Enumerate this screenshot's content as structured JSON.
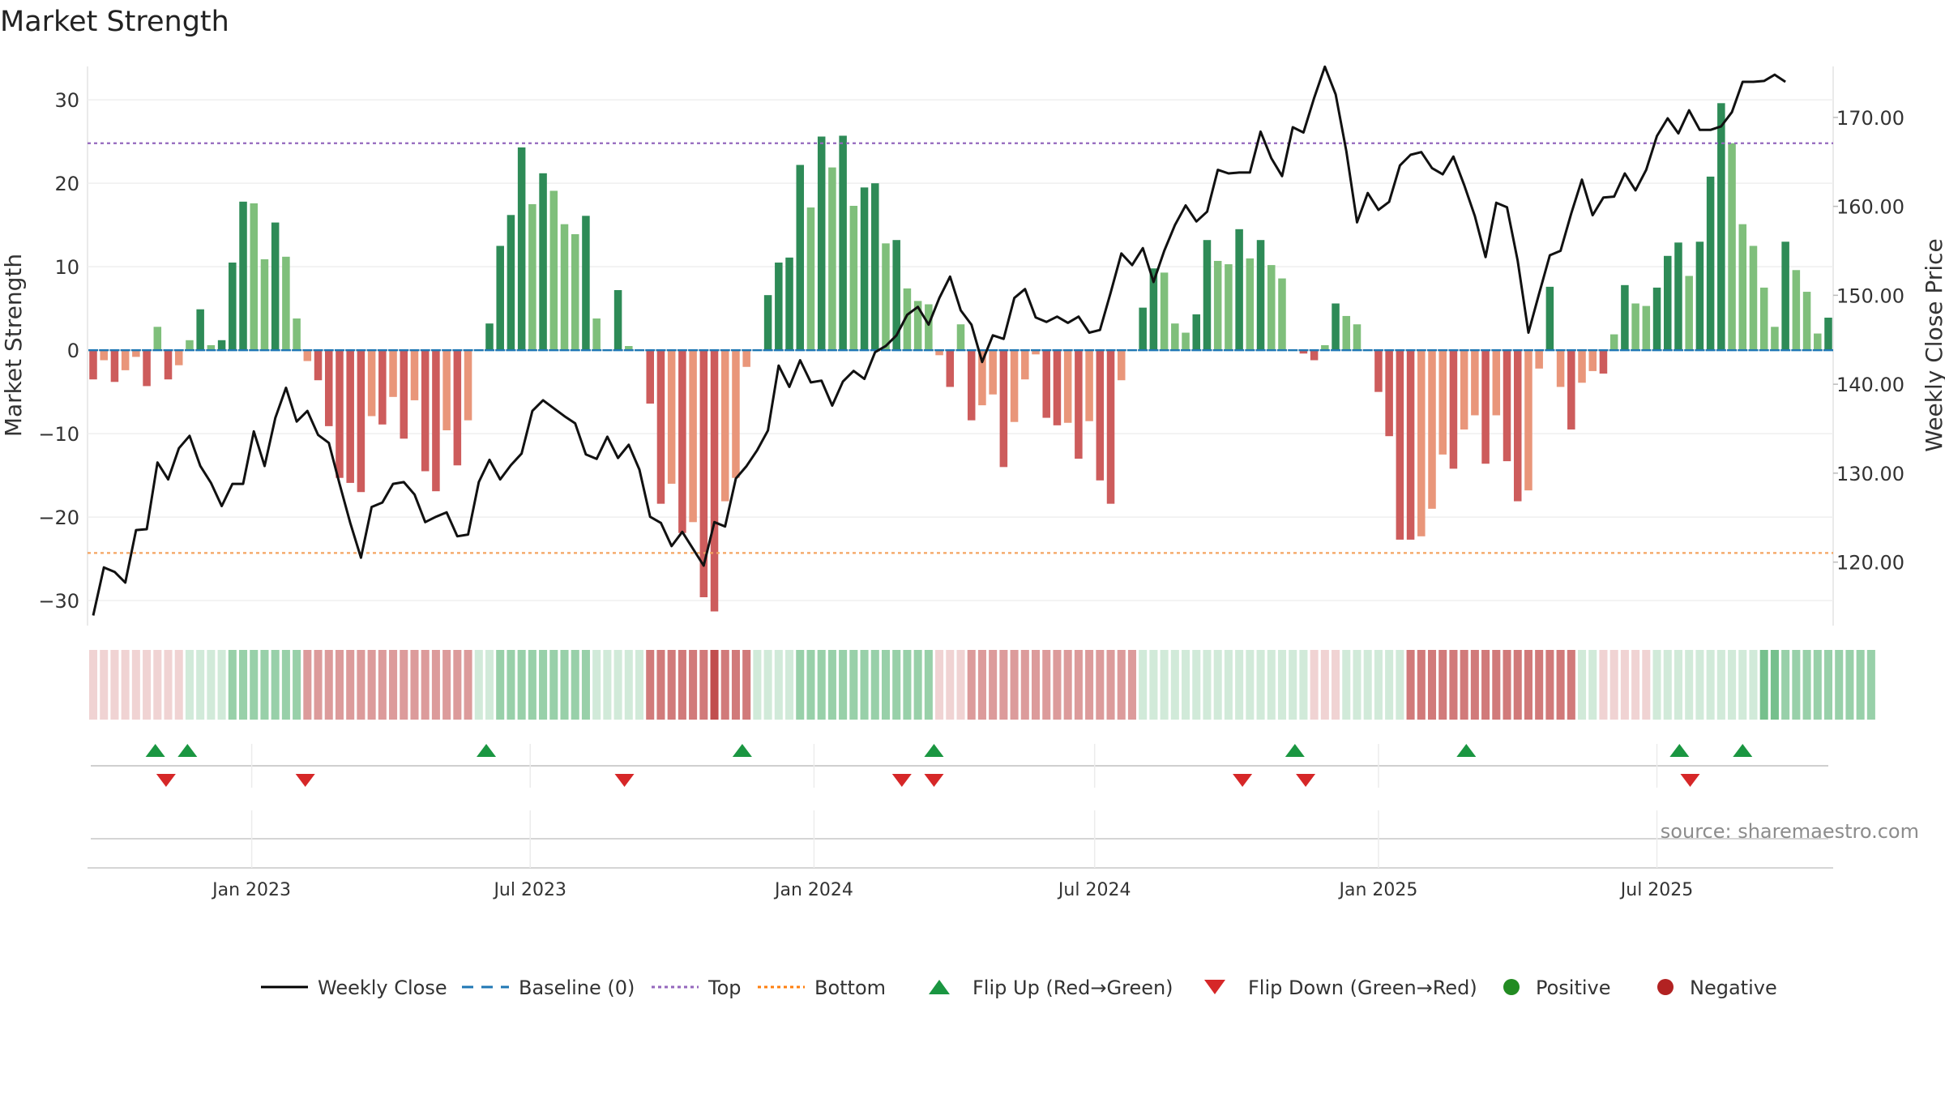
{
  "chart_data": {
    "type": "bar",
    "title": "Market Strength",
    "ylabel_left": "Market Strength",
    "ylabel_right": "Weekly Close Price",
    "ylim_left": [
      -33,
      34
    ],
    "ylim_right": [
      112.86,
      175.73
    ],
    "left_ticks": [
      30,
      20,
      10,
      0,
      -10,
      -20,
      -30
    ],
    "left_tick_labels": [
      "30",
      "20",
      "10",
      "0",
      "−10",
      "−20",
      "−30"
    ],
    "right_ticks": [
      170,
      160,
      150,
      140,
      130,
      120
    ],
    "right_tick_labels": [
      "170.00",
      "160.00",
      "150.00",
      "140.00",
      "130.00",
      "120.00"
    ],
    "x_ticks": [
      {
        "label": "Jan 2023",
        "week": 14.8
      },
      {
        "label": "Jul 2023",
        "week": 40.8
      },
      {
        "label": "Jan 2024",
        "week": 67.3
      },
      {
        "label": "Jul 2024",
        "week": 93.5
      },
      {
        "label": "Jan 2025",
        "week": 120.0
      },
      {
        "label": "Jul 2025",
        "week": 146.0
      }
    ],
    "top_level": 24.8,
    "bottom_level": -24.3,
    "strength": [
      -3.5,
      -1.2,
      -3.8,
      -2.4,
      -0.8,
      -4.3,
      2.8,
      -3.5,
      -1.8,
      1.2,
      4.9,
      0.6,
      1.2,
      10.5,
      17.8,
      17.6,
      10.9,
      15.3,
      11.2,
      3.8,
      -1.3,
      -3.6,
      -9.1,
      -15.3,
      -15.9,
      -17.0,
      -7.9,
      -8.9,
      -5.6,
      -10.6,
      -6.0,
      -14.5,
      -16.9,
      -9.6,
      -13.8,
      -8.4,
      0,
      3.2,
      12.5,
      16.2,
      24.3,
      17.5,
      21.2,
      19.1,
      15.1,
      13.9,
      16.1,
      3.8,
      0,
      7.2,
      0.5,
      0,
      -6.4,
      -18.4,
      -16.0,
      -21.9,
      -20.6,
      -29.6,
      -31.3,
      -18.1,
      -15.3,
      -2.0,
      0,
      6.6,
      10.5,
      11.1,
      22.2,
      17.1,
      25.6,
      21.9,
      25.7,
      17.3,
      19.5,
      20.0,
      12.8,
      13.2,
      7.4,
      5.9,
      5.5,
      -0.6,
      -4.4,
      3.1,
      -8.4,
      -6.6,
      -5.3,
      -14.0,
      -8.6,
      -3.5,
      -0.5,
      -8.1,
      -9.0,
      -8.7,
      -13.0,
      -8.5,
      -15.6,
      -18.4,
      -3.6,
      0,
      5.1,
      9.8,
      9.3,
      3.2,
      2.1,
      4.3,
      13.2,
      10.7,
      10.3,
      14.5,
      11.0,
      13.2,
      10.2,
      8.6,
      0,
      -0.4,
      -1.2,
      0.6,
      5.6,
      4.1,
      3.1,
      0,
      -5.0,
      -10.3,
      -22.7,
      -22.7,
      -22.3,
      -19.0,
      -12.5,
      -14.2,
      -9.5,
      -7.8,
      -13.6,
      -7.8,
      -13.3,
      -18.1,
      -16.8,
      -2.2,
      7.6,
      -4.4,
      -9.5,
      -3.9,
      -2.5,
      -2.8,
      1.9,
      7.8,
      5.6,
      5.3,
      7.5,
      11.3,
      12.9,
      8.9,
      13.0,
      20.8,
      29.6,
      24.8,
      15.1,
      12.5,
      7.5,
      2.8,
      13.0,
      9.6,
      7.0,
      2.0,
      3.9
    ],
    "close": [
      114.0,
      119.4,
      118.9,
      117.7,
      123.6,
      123.7,
      131.2,
      129.3,
      132.8,
      134.2,
      130.8,
      128.9,
      126.3,
      128.8,
      128.8,
      134.7,
      130.8,
      136.2,
      139.6,
      135.8,
      137.0,
      134.3,
      133.4,
      128.8,
      124.4,
      120.5,
      126.2,
      126.7,
      128.8,
      129.0,
      127.6,
      124.5,
      125.1,
      125.6,
      122.9,
      123.1,
      129.0,
      131.5,
      129.3,
      130.9,
      132.2,
      137.0,
      138.2,
      137.3,
      136.4,
      135.6,
      132.1,
      131.6,
      134.1,
      131.7,
      133.2,
      130.4,
      125.1,
      124.4,
      121.8,
      123.4,
      121.5,
      119.6,
      124.5,
      124.0,
      129.4,
      130.8,
      132.6,
      134.8,
      142.1,
      139.7,
      142.7,
      140.2,
      140.4,
      137.6,
      140.3,
      141.5,
      140.6,
      143.6,
      144.3,
      145.5,
      147.8,
      148.7,
      146.7,
      149.7,
      152.1,
      148.3,
      146.7,
      142.5,
      145.5,
      145.1,
      149.7,
      150.7,
      147.5,
      147.0,
      147.6,
      146.9,
      147.6,
      145.8,
      146.1,
      150.3,
      154.7,
      153.4,
      155.3,
      151.5,
      155.0,
      157.9,
      160.1,
      158.3,
      159.4,
      164.1,
      163.7,
      163.8,
      163.8,
      168.4,
      165.4,
      163.4,
      168.9,
      168.3,
      172.2,
      175.7,
      172.6,
      166.2,
      158.2,
      161.5,
      159.6,
      160.5,
      164.6,
      165.8,
      166.1,
      164.3,
      163.6,
      165.6,
      162.4,
      158.9,
      154.3,
      160.4,
      159.9,
      153.9,
      145.8,
      150.2,
      154.5,
      155.0,
      159.2,
      163.0,
      159.0,
      161.0,
      161.1,
      163.7,
      161.8,
      164.1,
      167.9,
      169.9,
      168.2,
      170.8,
      168.6,
      168.6,
      169.0,
      170.6,
      174.0,
      174.0,
      174.1,
      174.8,
      174.0
    ],
    "palette_band": {
      "weights": [
        -1,
        -1,
        -1,
        -1,
        -1,
        -1,
        -1,
        -1,
        -1,
        1,
        1,
        1,
        1,
        2,
        2,
        2,
        2,
        2,
        2,
        2,
        -2,
        -2,
        -2,
        -2,
        -2,
        -2,
        -2,
        -2,
        -2,
        -2,
        -2,
        -2,
        -2,
        -2,
        -2,
        -2,
        1,
        1,
        2,
        2,
        2,
        2,
        2,
        2,
        2,
        2,
        2,
        1,
        1,
        1,
        1,
        1,
        -3,
        -3,
        -3,
        -3,
        -3,
        -3,
        -4,
        -3,
        -3,
        -3,
        1,
        1,
        1,
        1,
        2,
        2,
        2,
        2,
        2,
        2,
        2,
        2,
        2,
        2,
        2,
        2,
        2,
        -1,
        -1,
        -1,
        -2,
        -2,
        -2,
        -2,
        -2,
        -2,
        -2,
        -2,
        -2,
        -2,
        -2,
        -2,
        -2,
        -2,
        -2,
        -2,
        1,
        1,
        1,
        1,
        1,
        1,
        1,
        1,
        1,
        1,
        1,
        1,
        1,
        1,
        1,
        1,
        -1,
        -1,
        -1,
        1,
        1,
        1,
        1,
        1,
        1,
        -3,
        -3,
        -3,
        -3,
        -3,
        -3,
        -3,
        -3,
        -3,
        -3,
        -3,
        -3,
        -3,
        -3,
        -3,
        -3,
        1,
        1,
        -1,
        -1,
        -1,
        -1,
        -1,
        1,
        1,
        1,
        1,
        1,
        1,
        1,
        1,
        1,
        1,
        3,
        3,
        2,
        2,
        2,
        2,
        2,
        2,
        2,
        2,
        2
      ]
    },
    "flip_up_weeks": [
      5.8,
      8.8,
      36.7,
      60.6,
      78.5,
      112.2,
      128.2,
      148.1,
      154.0
    ],
    "flip_down_weeks": [
      6.8,
      19.8,
      49.6,
      75.5,
      78.5,
      107.3,
      113.2,
      149.1
    ],
    "source_text": "source: sharemaestro.com",
    "legend": [
      {
        "label": "Weekly Close",
        "symbol": "line",
        "color": "#000000"
      },
      {
        "label": "Baseline (0)",
        "symbol": "dashed",
        "color": "#1f77b4"
      },
      {
        "label": "Top",
        "symbol": "dotted",
        "color": "#9467bd"
      },
      {
        "label": "Bottom",
        "symbol": "dotted",
        "color": "#ff7f0e"
      },
      {
        "label": "Flip Up (Red→Green)",
        "symbol": "tri-up",
        "color": "#1a9641"
      },
      {
        "label": "Flip Down (Green→Red)",
        "symbol": "tri-down",
        "color": "#d62728"
      },
      {
        "label": "Positive",
        "symbol": "dot",
        "color": "#228b22"
      },
      {
        "label": "Negative",
        "symbol": "dot",
        "color": "#b22222"
      }
    ],
    "colors": {
      "pos_strong": "#2e8b57",
      "pos_light": "#7fbf7b",
      "neg_strong": "#cd5c5c",
      "neg_light": "#e9967a",
      "close_line": "#111111",
      "top_line": "#9467bd",
      "bottom_line": "#f4a460",
      "baseline": "#1f77b4",
      "band_green": "#1a9641",
      "band_red": "#b22222"
    }
  }
}
